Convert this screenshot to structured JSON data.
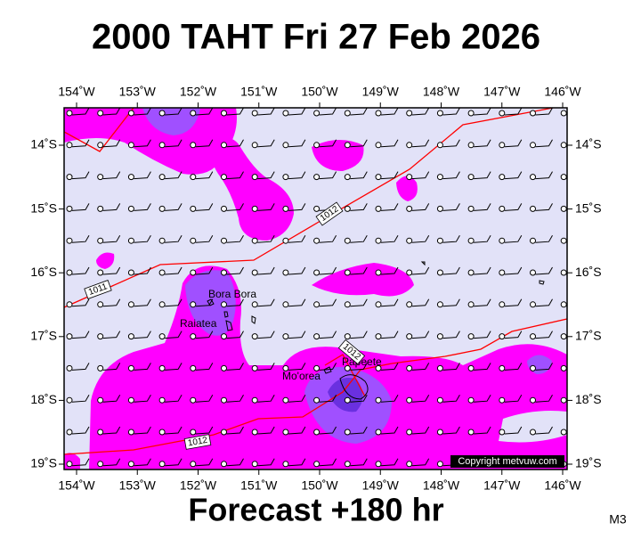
{
  "title": "2000 TAHT Fri 27 Feb 2026",
  "footer": "Forecast +180 hr",
  "corner_label": "M3",
  "copyright": "Copyright metvuw.com",
  "lon_labels": [
    "154˚W",
    "153˚W",
    "152˚W",
    "151˚W",
    "150˚W",
    "149˚W",
    "148˚W",
    "147˚W",
    "146˚W"
  ],
  "lat_labels": [
    "14˚S",
    "15˚S",
    "16˚S",
    "17˚S",
    "18˚S",
    "19˚S"
  ],
  "places": [
    "Bora Bora",
    "Raiatea",
    "Mo'orea",
    "Papeete"
  ],
  "isobar_labels": [
    "1011",
    "1012",
    "1012",
    "1012"
  ]
}
